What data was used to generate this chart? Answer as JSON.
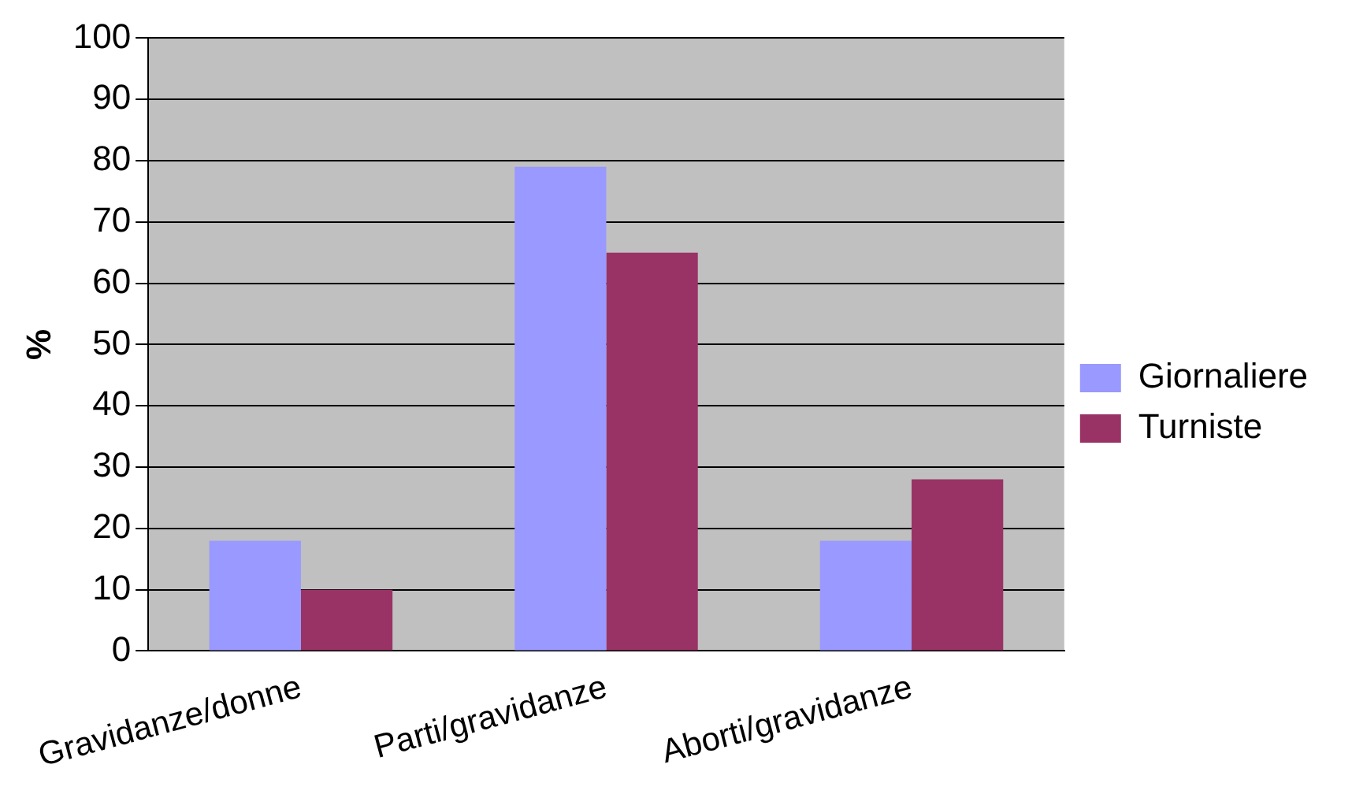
{
  "chart_data": {
    "type": "bar",
    "ylabel": "%",
    "categories": [
      "Gravidanze/donne",
      "Parti/gravidanze",
      "Aborti/gravidanze"
    ],
    "series": [
      {
        "name": "Giornaliere",
        "color": "#9999ff",
        "values": [
          18,
          79,
          18
        ]
      },
      {
        "name": "Turniste",
        "color": "#993366",
        "values": [
          10,
          65,
          28
        ]
      }
    ],
    "ylim": [
      0,
      100
    ],
    "yticks": [
      0,
      10,
      20,
      30,
      40,
      50,
      60,
      70,
      80,
      90,
      100
    ],
    "grid": "y",
    "legend": "right"
  }
}
